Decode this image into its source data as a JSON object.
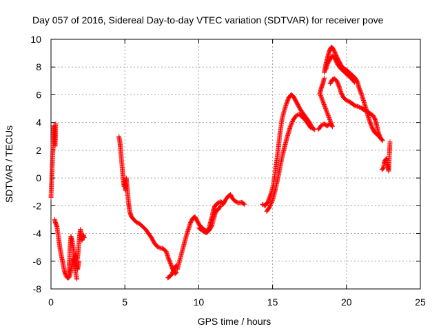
{
  "chart_data": {
    "type": "scatter",
    "title": "Day 057 of 2016, Sidereal Day-to-day VTEC variation (SDTVAR) for receiver pove",
    "xlabel": "GPS time / hours",
    "ylabel": "SDTVAR / TECUs",
    "xlim": [
      0,
      25
    ],
    "ylim": [
      -8,
      10
    ],
    "xticks": [
      0,
      5,
      10,
      15,
      20,
      25
    ],
    "yticks": [
      -8,
      -6,
      -4,
      -2,
      0,
      2,
      4,
      6,
      8,
      10
    ],
    "grid": true,
    "marker": "+",
    "color": "#ff0000",
    "series": [
      {
        "name": "early-spikes",
        "points": [
          [
            0.0,
            -1.4
          ],
          [
            0.2,
            3.8
          ],
          [
            0.22,
            3.5
          ],
          [
            0.25,
            2.6
          ],
          [
            0.28,
            2.3
          ],
          [
            0.3,
            3.0
          ],
          [
            0.32,
            3.9
          ]
        ]
      },
      {
        "name": "segment-1a",
        "points": [
          [
            0.25,
            -3.0
          ],
          [
            0.3,
            -3.2
          ],
          [
            0.4,
            -3.5
          ],
          [
            0.5,
            -4.2
          ],
          [
            0.6,
            -5.0
          ],
          [
            0.7,
            -5.6
          ],
          [
            0.8,
            -6.1
          ],
          [
            0.9,
            -6.7
          ],
          [
            1.0,
            -7.0
          ],
          [
            1.1,
            -7.2
          ],
          [
            1.2,
            -7.2
          ],
          [
            1.3,
            -6.9
          ],
          [
            1.4,
            -6.4
          ],
          [
            1.5,
            -5.8
          ],
          [
            1.6,
            -6.3
          ],
          [
            1.7,
            -7.0
          ],
          [
            1.75,
            -7.3
          ]
        ]
      },
      {
        "name": "segment-1b",
        "points": [
          [
            1.2,
            -6.8
          ],
          [
            1.3,
            -5.0
          ],
          [
            1.35,
            -4.2
          ],
          [
            1.45,
            -4.6
          ],
          [
            1.55,
            -5.3
          ],
          [
            1.6,
            -6.0
          ],
          [
            1.65,
            -5.5
          ],
          [
            1.7,
            -6.2
          ],
          [
            1.8,
            -6.6
          ],
          [
            1.9,
            -6.0
          ]
        ]
      },
      {
        "name": "segment-1c",
        "points": [
          [
            1.8,
            -5.8
          ],
          [
            1.85,
            -5.2
          ],
          [
            1.9,
            -4.6
          ],
          [
            1.95,
            -4.0
          ],
          [
            2.0,
            -3.7
          ],
          [
            2.05,
            -4.2
          ],
          [
            2.1,
            -4.5
          ],
          [
            2.2,
            -4.1
          ],
          [
            2.25,
            -4.3
          ]
        ]
      },
      {
        "name": "segment-2",
        "points": [
          [
            4.6,
            3.0
          ],
          [
            4.65,
            2.7
          ],
          [
            4.7,
            2.2
          ],
          [
            4.75,
            1.6
          ],
          [
            4.8,
            1.0
          ],
          [
            4.85,
            0.4
          ],
          [
            4.9,
            -0.2
          ],
          [
            4.95,
            -0.6
          ],
          [
            5.0,
            -0.4
          ],
          [
            5.05,
            -0.9
          ],
          [
            5.1,
            0.0
          ],
          [
            5.15,
            -0.6
          ],
          [
            5.2,
            -1.2
          ],
          [
            5.25,
            -1.8
          ],
          [
            5.3,
            -2.2
          ],
          [
            5.35,
            -2.5
          ],
          [
            5.45,
            -2.8
          ],
          [
            5.6,
            -3.0
          ],
          [
            5.8,
            -3.2
          ],
          [
            6.0,
            -3.3
          ],
          [
            6.2,
            -3.5
          ],
          [
            6.4,
            -3.7
          ],
          [
            6.6,
            -4.0
          ],
          [
            6.8,
            -4.3
          ],
          [
            7.0,
            -4.7
          ],
          [
            7.2,
            -4.95
          ],
          [
            7.4,
            -5.05
          ],
          [
            7.6,
            -5.1
          ],
          [
            7.8,
            -5.3
          ],
          [
            7.95,
            -5.8
          ],
          [
            8.1,
            -6.2
          ],
          [
            8.25,
            -6.6
          ],
          [
            8.4,
            -6.9
          ],
          [
            8.5,
            -6.8
          ]
        ]
      },
      {
        "name": "segment-2-spur",
        "points": [
          [
            7.9,
            -7.2
          ],
          [
            8.05,
            -7.1
          ],
          [
            8.2,
            -6.9
          ],
          [
            8.35,
            -6.5
          ],
          [
            8.5,
            -6.3
          ]
        ]
      },
      {
        "name": "segment-3",
        "points": [
          [
            8.55,
            -6.6
          ],
          [
            8.7,
            -6.0
          ],
          [
            8.85,
            -5.4
          ],
          [
            9.0,
            -4.8
          ],
          [
            9.15,
            -4.2
          ],
          [
            9.3,
            -3.7
          ],
          [
            9.45,
            -3.2
          ],
          [
            9.6,
            -2.9
          ],
          [
            9.75,
            -2.8
          ],
          [
            9.9,
            -3.1
          ],
          [
            10.05,
            -3.4
          ],
          [
            10.25,
            -3.6
          ],
          [
            10.45,
            -3.8
          ],
          [
            10.6,
            -3.85
          ],
          [
            10.7,
            -3.6
          ],
          [
            10.8,
            -3.2
          ],
          [
            10.9,
            -2.8
          ],
          [
            11.0,
            -2.3
          ],
          [
            11.1,
            -2.0
          ],
          [
            11.3,
            -1.8
          ],
          [
            11.5,
            -1.7
          ],
          [
            11.65,
            -1.9
          ],
          [
            11.8,
            -1.6
          ],
          [
            12.0,
            -1.3
          ],
          [
            12.15,
            -1.2
          ],
          [
            12.3,
            -1.5
          ],
          [
            12.5,
            -1.7
          ],
          [
            12.7,
            -1.8
          ],
          [
            12.9,
            -1.75
          ],
          [
            13.1,
            -1.9
          ]
        ]
      },
      {
        "name": "segment-3-lower",
        "points": [
          [
            10.0,
            -3.6
          ],
          [
            10.2,
            -3.75
          ],
          [
            10.4,
            -3.9
          ],
          [
            10.55,
            -3.95
          ],
          [
            10.75,
            -3.7
          ],
          [
            10.9,
            -3.4
          ],
          [
            11.05,
            -2.8
          ],
          [
            11.15,
            -2.4
          ],
          [
            11.3,
            -2.3
          ],
          [
            11.5,
            -2.0
          ]
        ]
      },
      {
        "name": "segment-4-upper",
        "points": [
          [
            14.3,
            -1.9
          ],
          [
            14.5,
            -2.0
          ],
          [
            14.7,
            -1.7
          ],
          [
            14.9,
            -1.1
          ],
          [
            15.05,
            -0.5
          ],
          [
            15.2,
            0.6
          ],
          [
            15.35,
            1.8
          ],
          [
            15.5,
            3.2
          ],
          [
            15.65,
            4.3
          ],
          [
            15.8,
            4.9
          ],
          [
            15.95,
            5.4
          ],
          [
            16.1,
            5.8
          ],
          [
            16.25,
            6.0
          ],
          [
            16.4,
            5.9
          ],
          [
            16.55,
            5.6
          ],
          [
            16.7,
            5.3
          ],
          [
            16.9,
            4.9
          ],
          [
            17.1,
            4.6
          ],
          [
            17.3,
            4.3
          ],
          [
            17.5,
            4.0
          ],
          [
            17.7,
            3.6
          ],
          [
            17.85,
            3.5
          ]
        ]
      },
      {
        "name": "segment-4-lower",
        "points": [
          [
            14.6,
            -2.4
          ],
          [
            14.8,
            -2.1
          ],
          [
            15.0,
            -1.6
          ],
          [
            15.2,
            -0.8
          ],
          [
            15.4,
            0.2
          ],
          [
            15.6,
            1.3
          ],
          [
            15.8,
            2.2
          ],
          [
            16.0,
            3.0
          ],
          [
            16.2,
            3.7
          ],
          [
            16.4,
            4.2
          ],
          [
            16.6,
            4.5
          ],
          [
            16.8,
            4.6
          ],
          [
            17.0,
            4.4
          ],
          [
            17.2,
            4.2
          ],
          [
            17.4,
            3.9
          ],
          [
            17.6,
            3.6
          ]
        ]
      },
      {
        "name": "segment-5",
        "points": [
          [
            18.1,
            3.5
          ],
          [
            18.3,
            3.8
          ],
          [
            18.5,
            3.9
          ],
          [
            18.7,
            3.75
          ],
          [
            18.9,
            3.95
          ],
          [
            19.05,
            3.7
          ],
          [
            18.2,
            6.1
          ],
          [
            18.3,
            6.5
          ],
          [
            18.4,
            6.8
          ],
          [
            18.5,
            7.2
          ]
        ]
      },
      {
        "name": "segment-6-upper",
        "points": [
          [
            18.5,
            7.6
          ],
          [
            18.6,
            8.2
          ],
          [
            18.7,
            8.6
          ],
          [
            18.8,
            9.0
          ],
          [
            18.9,
            9.3
          ],
          [
            19.0,
            9.45
          ],
          [
            19.1,
            9.3
          ],
          [
            19.2,
            9.1
          ],
          [
            19.35,
            8.7
          ],
          [
            19.5,
            8.4
          ],
          [
            19.65,
            8.1
          ],
          [
            19.8,
            7.9
          ],
          [
            20.0,
            7.8
          ],
          [
            20.2,
            7.6
          ],
          [
            20.4,
            7.4
          ],
          [
            20.6,
            7.2
          ],
          [
            20.75,
            6.9
          ],
          [
            20.85,
            6.5
          ],
          [
            21.0,
            6.1
          ],
          [
            21.15,
            5.6
          ],
          [
            21.3,
            5.1
          ],
          [
            21.45,
            4.5
          ],
          [
            21.6,
            4.0
          ],
          [
            21.75,
            3.6
          ],
          [
            21.9,
            3.3
          ],
          [
            22.1,
            3.1
          ],
          [
            22.25,
            2.95
          ],
          [
            22.4,
            2.75
          ]
        ]
      },
      {
        "name": "segment-6-middle",
        "points": [
          [
            18.6,
            7.8
          ],
          [
            18.75,
            8.3
          ],
          [
            18.9,
            8.6
          ],
          [
            19.05,
            8.8
          ],
          [
            19.2,
            8.65
          ],
          [
            19.4,
            8.2
          ],
          [
            19.6,
            7.9
          ],
          [
            19.8,
            7.7
          ],
          [
            20.0,
            7.5
          ],
          [
            20.2,
            7.3
          ],
          [
            20.4,
            7.1
          ],
          [
            20.55,
            6.9
          ]
        ]
      },
      {
        "name": "segment-6-lower",
        "points": [
          [
            18.9,
            6.8
          ],
          [
            19.05,
            7.1
          ],
          [
            19.2,
            7.15
          ],
          [
            19.35,
            7.0
          ],
          [
            19.5,
            6.6
          ],
          [
            19.65,
            6.1
          ],
          [
            19.8,
            5.8
          ],
          [
            20.0,
            5.6
          ],
          [
            20.2,
            5.5
          ],
          [
            20.4,
            5.35
          ],
          [
            20.6,
            5.2
          ],
          [
            20.8,
            5.15
          ],
          [
            21.0,
            5.05
          ],
          [
            21.2,
            4.9
          ],
          [
            21.4,
            4.8
          ],
          [
            21.6,
            4.65
          ],
          [
            21.8,
            4.5
          ],
          [
            21.95,
            4.2
          ],
          [
            22.05,
            3.8
          ],
          [
            22.15,
            3.3
          ],
          [
            22.25,
            3.0
          ],
          [
            22.35,
            2.8
          ],
          [
            22.45,
            2.7
          ]
        ]
      },
      {
        "name": "segment-7",
        "points": [
          [
            22.4,
            0.6
          ],
          [
            22.5,
            0.7
          ],
          [
            22.55,
            1.0
          ],
          [
            22.6,
            1.25
          ],
          [
            22.7,
            1.4
          ],
          [
            22.75,
            1.2
          ],
          [
            22.8,
            0.9
          ],
          [
            22.85,
            0.5
          ],
          [
            22.95,
            2.6
          ]
        ]
      }
    ]
  }
}
